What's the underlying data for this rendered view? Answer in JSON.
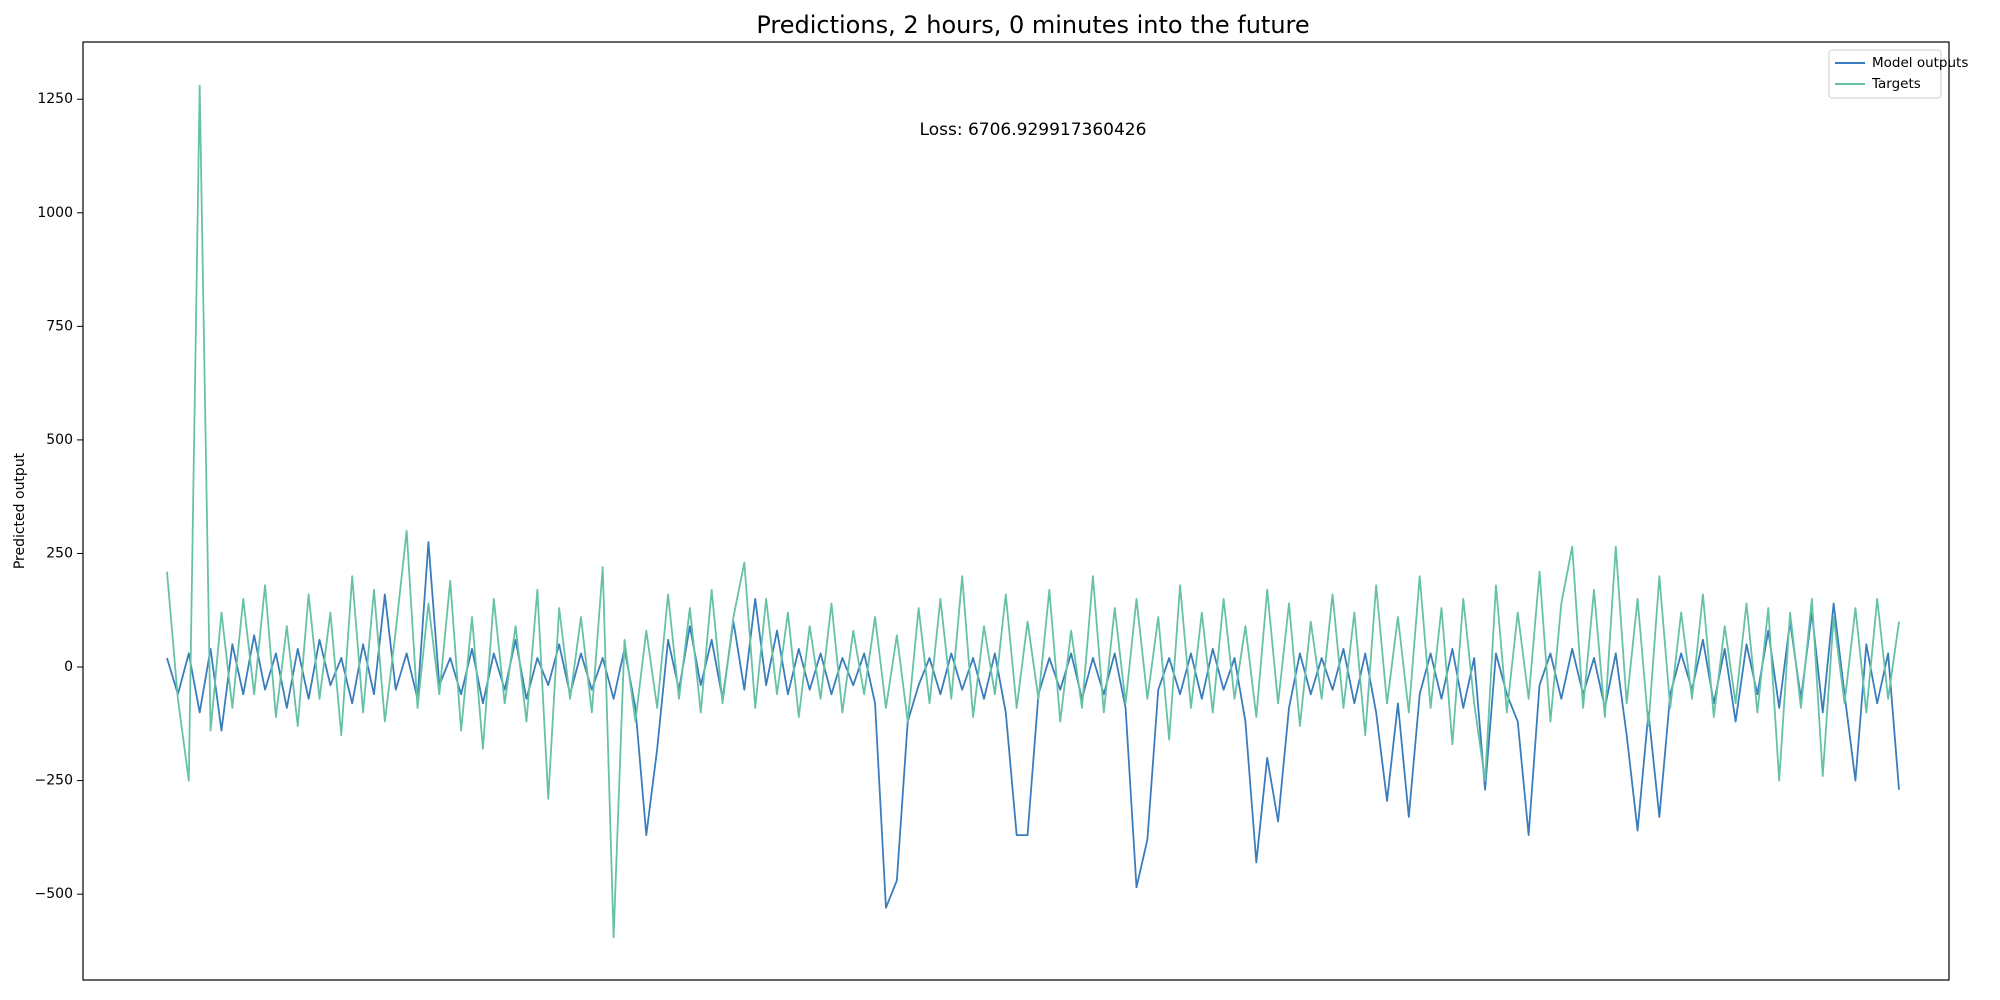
{
  "chart_data": {
    "type": "line",
    "title": "Predictions, 2 hours, 0 minutes into the future",
    "ylabel": "Predicted output",
    "annotation": "Loss: 6706.929917360426",
    "ylim": [
      -689,
      1376
    ],
    "yticks": [
      {
        "value": -500,
        "label": "−500"
      },
      {
        "value": -250,
        "label": "−250"
      },
      0,
      250,
      500,
      750,
      1000,
      1250
    ],
    "grid": false,
    "legend": "upper right",
    "series": [
      {
        "name": "Model outputs",
        "color": "#3a7dbf",
        "values": [
          20,
          -60,
          30,
          -100,
          40,
          -140,
          50,
          -60,
          70,
          -50,
          30,
          -90,
          40,
          -70,
          60,
          -40,
          20,
          -80,
          50,
          -60,
          160,
          -50,
          30,
          -70,
          275,
          -40,
          20,
          -60,
          40,
          -80,
          30,
          -50,
          60,
          -70,
          20,
          -40,
          50,
          -60,
          30,
          -50,
          20,
          -70,
          40,
          -90,
          -370,
          -180,
          60,
          -50,
          90,
          -40,
          60,
          -70,
          100,
          -50,
          150,
          -40,
          80,
          -60,
          40,
          -50,
          30,
          -60,
          20,
          -40,
          30,
          -80,
          -530,
          -470,
          -120,
          -40,
          20,
          -60,
          30,
          -50,
          20,
          -70,
          30,
          -100,
          -370,
          -370,
          -60,
          20,
          -50,
          30,
          -70,
          20,
          -60,
          30,
          -90,
          -485,
          -380,
          -50,
          20,
          -60,
          30,
          -70,
          40,
          -50,
          20,
          -120,
          -430,
          -200,
          -340,
          -90,
          30,
          -60,
          20,
          -50,
          40,
          -80,
          30,
          -100,
          -295,
          -80,
          -330,
          -60,
          30,
          -70,
          40,
          -90,
          20,
          -270,
          30,
          -60,
          -120,
          -370,
          -40,
          30,
          -70,
          40,
          -60,
          20,
          -90,
          30,
          -150,
          -360,
          -100,
          -330,
          -60,
          30,
          -50,
          60,
          -80,
          40,
          -120,
          50,
          -60,
          80,
          -90,
          100,
          -70,
          120,
          -100,
          140,
          -60,
          -250,
          50,
          -80,
          30,
          -270
        ]
      },
      {
        "name": "Targets",
        "color": "#66c2a5",
        "values": [
          210,
          -70,
          -250,
          1280,
          -140,
          120,
          -90,
          150,
          -60,
          180,
          -110,
          90,
          -130,
          160,
          -70,
          120,
          -150,
          200,
          -100,
          170,
          -120,
          80,
          300,
          -90,
          140,
          -60,
          190,
          -140,
          110,
          -180,
          150,
          -80,
          90,
          -120,
          170,
          -290,
          130,
          -70,
          110,
          -100,
          220,
          -595,
          60,
          -120,
          80,
          -90,
          160,
          -70,
          130,
          -100,
          170,
          -80,
          110,
          230,
          -90,
          150,
          -60,
          120,
          -110,
          90,
          -70,
          140,
          -100,
          80,
          -60,
          110,
          -90,
          70,
          -120,
          130,
          -80,
          150,
          -70,
          200,
          -110,
          90,
          -60,
          160,
          -90,
          100,
          -70,
          170,
          -120,
          80,
          -90,
          200,
          -100,
          130,
          -80,
          150,
          -70,
          110,
          -160,
          180,
          -90,
          120,
          -100,
          150,
          -70,
          90,
          -110,
          170,
          -80,
          140,
          -130,
          100,
          -70,
          160,
          -90,
          120,
          -150,
          180,
          -80,
          110,
          -100,
          200,
          -90,
          130,
          -170,
          150,
          -80,
          -250,
          180,
          -100,
          120,
          -70,
          210,
          -120,
          140,
          265,
          -90,
          170,
          -110,
          265,
          -80,
          150,
          -130,
          200,
          -90,
          120,
          -70,
          160,
          -110,
          90,
          -80,
          140,
          -100,
          130,
          -250,
          120,
          -90,
          150,
          -240,
          110,
          -80,
          130,
          -100,
          150,
          -70,
          100
        ]
      }
    ]
  }
}
